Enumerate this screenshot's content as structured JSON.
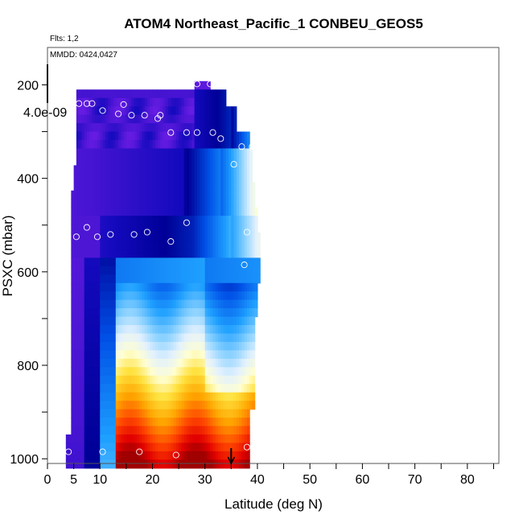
{
  "chart_data": {
    "type": "heatmap",
    "title": "ATOM4 Northeast_Pacific_1 CONBEU_GEOS5",
    "flights_label": "Flts: 1,2",
    "dates_label": "MMDD: 0424,0427",
    "colorbar_label": "4.0e-09",
    "xlabel": "Latitude (deg N)",
    "ylabel": "PSXC (mbar)",
    "xlim": [
      0,
      86
    ],
    "ylim": [
      1010,
      120
    ],
    "x_ticks": [
      0,
      5,
      10,
      20,
      30,
      40,
      50,
      60,
      70,
      80
    ],
    "x_minor_ticks": [
      15,
      25,
      35,
      45,
      55,
      65,
      75,
      85
    ],
    "y_ticks": [
      200,
      400,
      600,
      800,
      1000
    ],
    "y_minor_ticks": [
      300,
      500,
      700,
      900
    ],
    "marker_latitude": 35,
    "colors": {
      "low": "#0000b0",
      "mid": "#aaddff",
      "high": "#cc0000"
    },
    "observations": [
      [
        4.0,
        985
      ],
      [
        5.5,
        525
      ],
      [
        7.5,
        505
      ],
      [
        9.5,
        525
      ],
      [
        12.0,
        520
      ],
      [
        16.5,
        520
      ],
      [
        19.0,
        515
      ],
      [
        6.0,
        240
      ],
      [
        7.5,
        240
      ],
      [
        8.5,
        240
      ],
      [
        10.5,
        255
      ],
      [
        13.5,
        262
      ],
      [
        14.5,
        242
      ],
      [
        16.0,
        265
      ],
      [
        18.5,
        265
      ],
      [
        21.0,
        272
      ],
      [
        21.5,
        265
      ],
      [
        23.5,
        302
      ],
      [
        26.5,
        302
      ],
      [
        28.5,
        302
      ],
      [
        31.5,
        302
      ],
      [
        33.0,
        315
      ],
      [
        35.5,
        370
      ],
      [
        37.0,
        332
      ],
      [
        39.0,
        332
      ],
      [
        26.5,
        495
      ],
      [
        23.5,
        535
      ],
      [
        38.0,
        515
      ],
      [
        37.5,
        585
      ],
      [
        28.5,
        198
      ],
      [
        31.0,
        198
      ],
      [
        10.5,
        985
      ],
      [
        17.5,
        985
      ],
      [
        24.5,
        992
      ],
      [
        38.0,
        975
      ]
    ]
  }
}
